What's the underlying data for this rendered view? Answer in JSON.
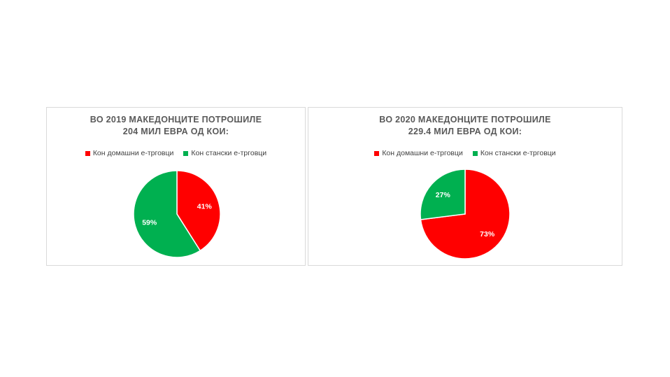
{
  "chart_data": [
    {
      "type": "pie",
      "title_lines": [
        "ВО 2019 МАКЕДОНЦИТЕ ПОТРОШИЛЕ",
        "204 МИЛ ЕВРА ОД КОИ:"
      ],
      "legend_position": "top",
      "categories": [
        "Кон домашни е-трговци",
        "Кон стански е-трговци"
      ],
      "values": [
        41,
        59
      ],
      "labels": [
        "41%",
        "59%"
      ],
      "colors": [
        "#ff0000",
        "#00b050"
      ]
    },
    {
      "type": "pie",
      "title_lines": [
        "ВО 2020 МАКЕДОНЦИТЕ ПОТРОШИЛЕ",
        "229.4 МИЛ ЕВРА ОД КОИ:"
      ],
      "legend_position": "top",
      "categories": [
        "Кон домашни е-трговци",
        "Кон стански е-трговци"
      ],
      "values": [
        73,
        27
      ],
      "labels": [
        "73%",
        "27%"
      ],
      "colors": [
        "#ff0000",
        "#00b050"
      ]
    }
  ]
}
